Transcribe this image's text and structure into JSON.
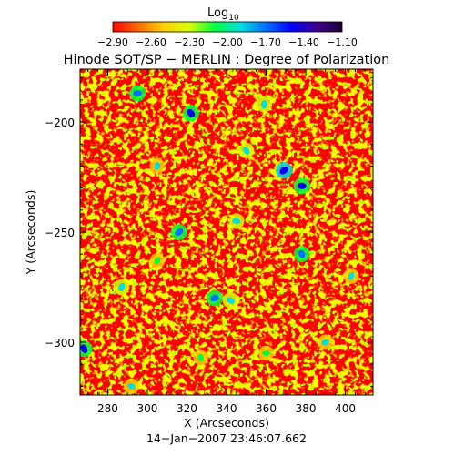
{
  "chart_data": {
    "type": "heatmap",
    "title": "Hinode SOT/SP − MERLIN : Degree of Polarization",
    "xlabel": "X (Arcseconds)",
    "ylabel": "Y (Arcseconds)",
    "date_label": "14−Jan−2007 23:46:07.662",
    "xlim": [
      266,
      414
    ],
    "ylim": [
      -324,
      -176
    ],
    "x_ticks": [
      280,
      300,
      320,
      340,
      360,
      380,
      400
    ],
    "x_tick_labels": [
      "280",
      "300",
      "320",
      "340",
      "360",
      "380",
      "400"
    ],
    "y_ticks": [
      -200,
      -250,
      -300
    ],
    "y_tick_labels": [
      "−200",
      "−250",
      "−300"
    ],
    "colorbar": {
      "label": "Log",
      "label_subscript": "10",
      "range": [
        -2.9,
        -1.1
      ],
      "tick_labels": [
        "−2.90",
        "−2.60",
        "−2.30",
        "−2.00",
        "−1.70",
        "−1.40",
        "−1.10"
      ],
      "colors": [
        "#ff0000",
        "#ff6a00",
        "#ffd000",
        "#d8ff00",
        "#00ff3c",
        "#00e0e0",
        "#0070ff",
        "#0000ff",
        "#400090",
        "#1a0030"
      ]
    },
    "field": {
      "background_level": -2.85,
      "texture_levels": [
        -2.6,
        -2.45
      ],
      "features": [
        {
          "x": 295,
          "y": -187,
          "level": -1.7
        },
        {
          "x": 322,
          "y": -196,
          "level": -1.6
        },
        {
          "x": 359,
          "y": -192,
          "level": -1.8
        },
        {
          "x": 369,
          "y": -222,
          "level": -1.5
        },
        {
          "x": 378,
          "y": -229,
          "level": -1.6
        },
        {
          "x": 350,
          "y": -213,
          "level": -1.9
        },
        {
          "x": 305,
          "y": -220,
          "level": -2.0
        },
        {
          "x": 316,
          "y": -250,
          "level": -1.7
        },
        {
          "x": 345,
          "y": -245,
          "level": -1.9
        },
        {
          "x": 268,
          "y": -303,
          "level": -1.6
        },
        {
          "x": 287,
          "y": -275,
          "level": -1.8
        },
        {
          "x": 334,
          "y": -280,
          "level": -1.7
        },
        {
          "x": 342,
          "y": -281,
          "level": -1.8
        },
        {
          "x": 378,
          "y": -260,
          "level": -1.7
        },
        {
          "x": 403,
          "y": -270,
          "level": -2.0
        },
        {
          "x": 390,
          "y": -300,
          "level": -2.0
        },
        {
          "x": 292,
          "y": -320,
          "level": -2.0
        },
        {
          "x": 327,
          "y": -307,
          "level": -2.1
        },
        {
          "x": 305,
          "y": -263,
          "level": -2.1
        },
        {
          "x": 360,
          "y": -305,
          "level": -2.1
        }
      ]
    }
  }
}
